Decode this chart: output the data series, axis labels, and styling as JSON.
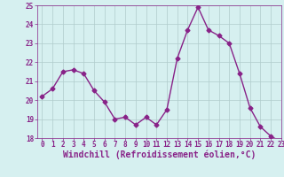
{
  "x": [
    0,
    1,
    2,
    3,
    4,
    5,
    6,
    7,
    8,
    9,
    10,
    11,
    12,
    13,
    14,
    15,
    16,
    17,
    18,
    19,
    20,
    21,
    22,
    23
  ],
  "y": [
    20.2,
    20.6,
    21.5,
    21.6,
    21.4,
    20.5,
    19.9,
    19.0,
    19.1,
    18.7,
    19.1,
    18.7,
    19.5,
    22.2,
    23.7,
    24.9,
    23.7,
    23.4,
    23.0,
    21.4,
    19.6,
    18.6,
    18.1,
    17.8
  ],
  "line_color": "#882288",
  "marker": "D",
  "marker_size": 2.5,
  "bg_color": "#d6f0f0",
  "grid_color": "#b0cccc",
  "xlabel": "Windchill (Refroidissement éolien,°C)",
  "xlabel_color": "#882288",
  "ylim": [
    18,
    25
  ],
  "xlim": [
    -0.5,
    23
  ],
  "yticks": [
    18,
    19,
    20,
    21,
    22,
    23,
    24,
    25
  ],
  "xticks": [
    0,
    1,
    2,
    3,
    4,
    5,
    6,
    7,
    8,
    9,
    10,
    11,
    12,
    13,
    14,
    15,
    16,
    17,
    18,
    19,
    20,
    21,
    22,
    23
  ],
  "tick_color": "#882288",
  "tick_fontsize": 5.5,
  "xlabel_fontsize": 7.0,
  "linewidth": 1.0
}
